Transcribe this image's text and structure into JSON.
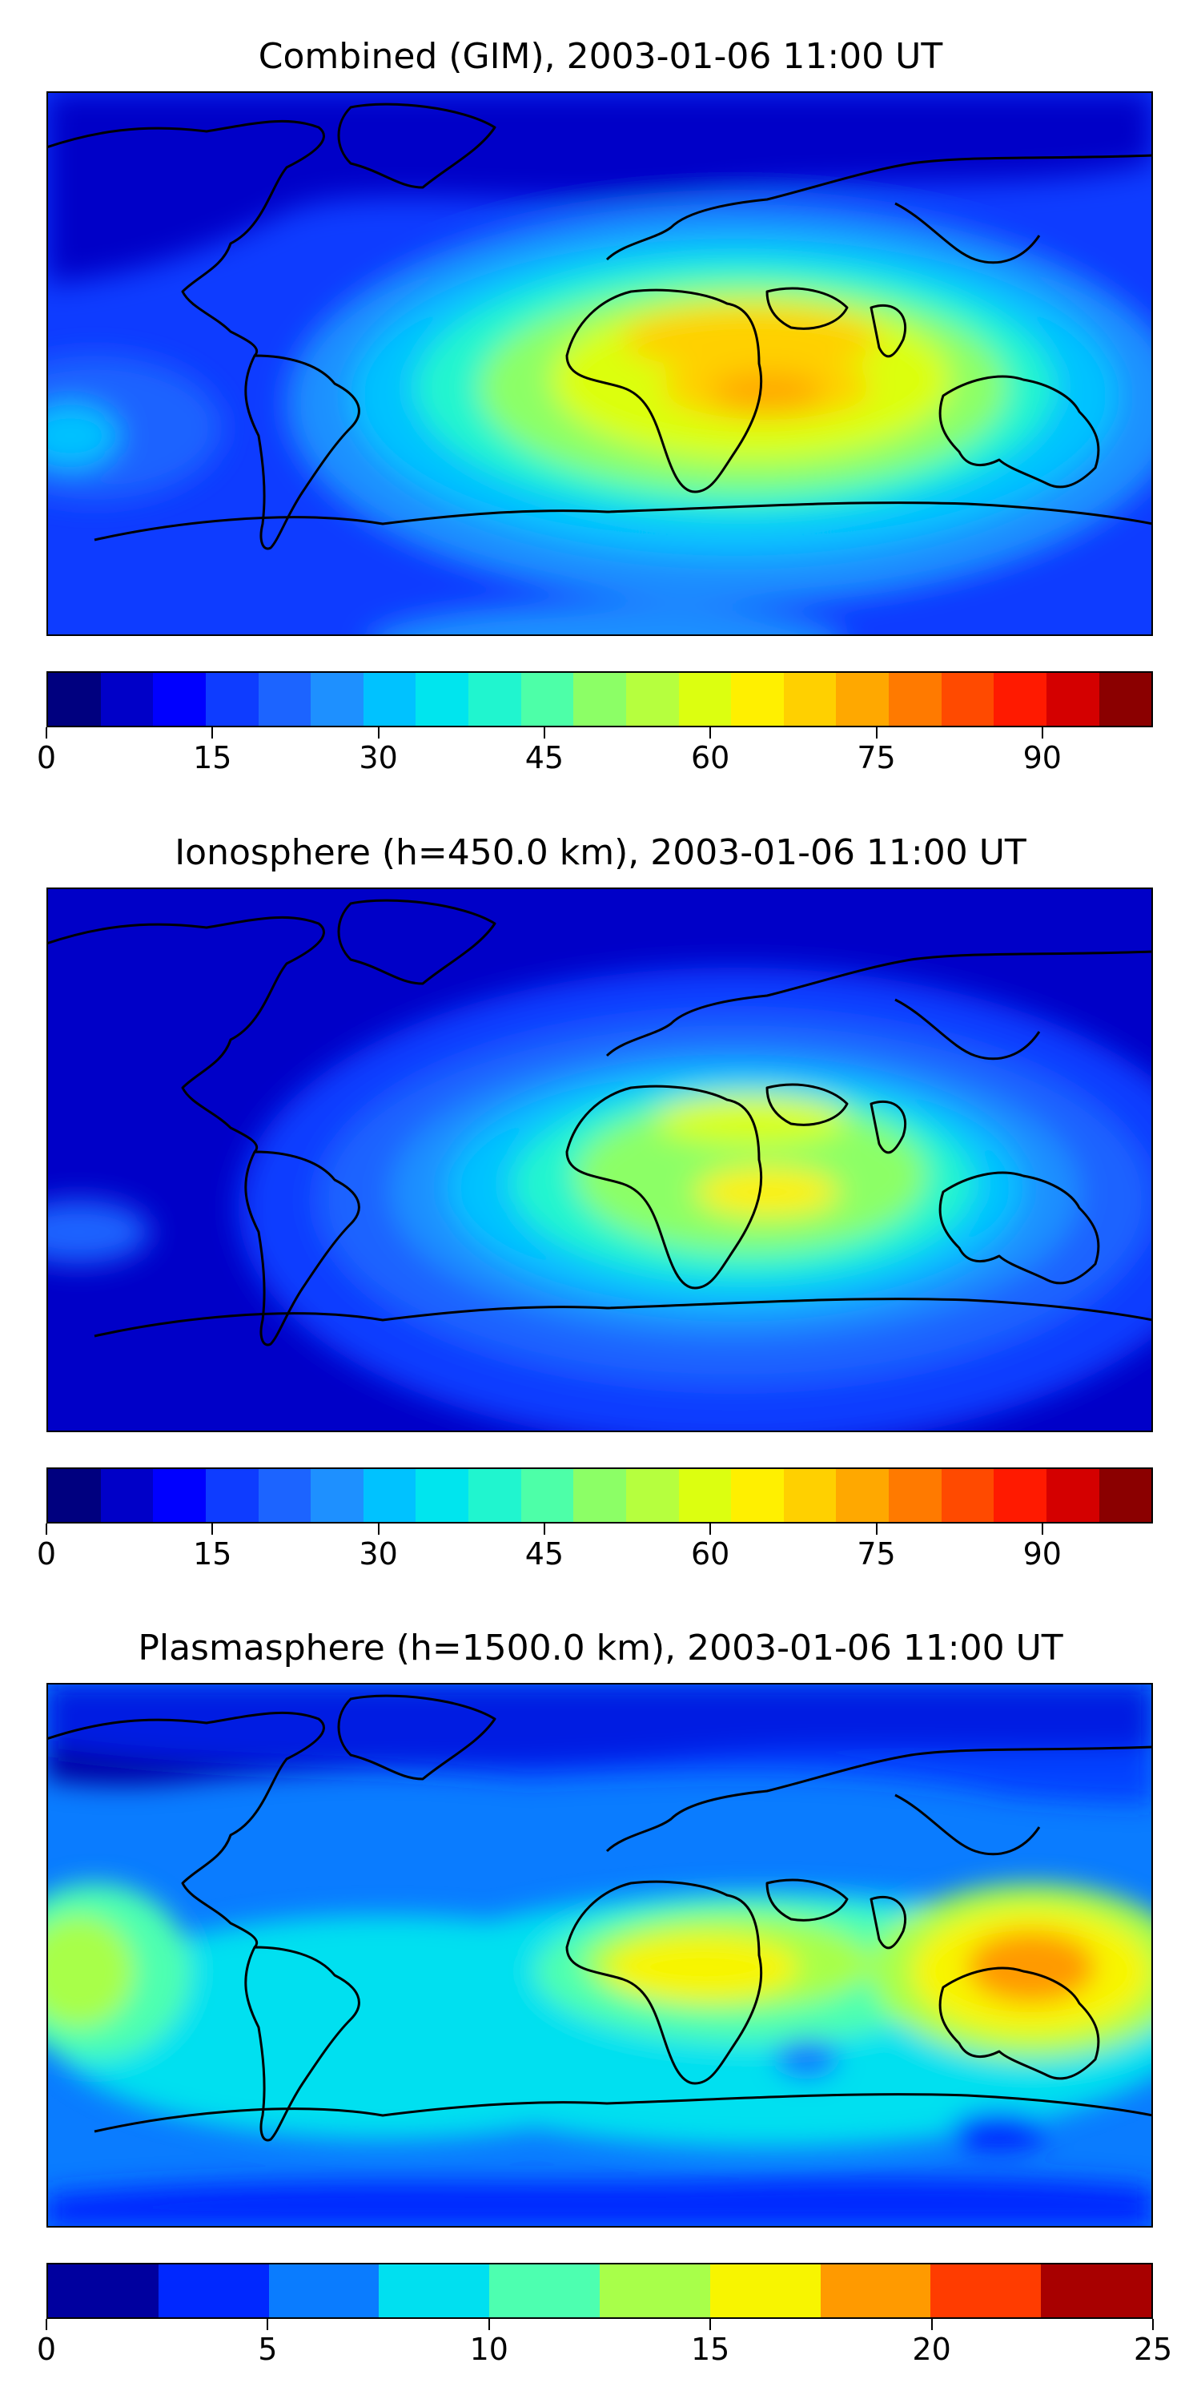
{
  "maps": [
    {
      "title": "Combined (GIM), 2003-01-06 11:00 UT",
      "colorbar": {
        "colors": [
          "#00007f",
          "#0000c8",
          "#0000ff",
          "#0e3cff",
          "#1c64ff",
          "#1e90ff",
          "#00c2ff",
          "#00e5ee",
          "#20f5cf",
          "#4dffa8",
          "#8cff66",
          "#b6ff3e",
          "#dcff10",
          "#fff000",
          "#ffd000",
          "#ffa800",
          "#ff7a00",
          "#ff4a00",
          "#ff1a00",
          "#d40000",
          "#8b0000"
        ],
        "ticks": [
          "0",
          "15",
          "30",
          "45",
          "60",
          "75",
          "90"
        ],
        "tick_values": [
          0,
          15,
          30,
          45,
          60,
          75,
          90
        ],
        "range": [
          0,
          100
        ]
      }
    },
    {
      "title": "Ionosphere  (h=450.0 km), 2003-01-06 11:00 UT",
      "colorbar": {
        "colors": [
          "#00007f",
          "#0000c8",
          "#0000ff",
          "#0e3cff",
          "#1c64ff",
          "#1e90ff",
          "#00c2ff",
          "#00e5ee",
          "#20f5cf",
          "#4dffa8",
          "#8cff66",
          "#b6ff3e",
          "#dcff10",
          "#fff000",
          "#ffd000",
          "#ffa800",
          "#ff7a00",
          "#ff4a00",
          "#ff1a00",
          "#d40000",
          "#8b0000"
        ],
        "ticks": [
          "0",
          "15",
          "30",
          "45",
          "60",
          "75",
          "90"
        ],
        "tick_values": [
          0,
          15,
          30,
          45,
          60,
          75,
          90
        ],
        "range": [
          0,
          100
        ]
      }
    },
    {
      "title": "Plasmasphere (h=1500.0 km), 2003-01-06 11:00 UT",
      "colorbar": {
        "colors": [
          "#00009f",
          "#0028ff",
          "#0a7cff",
          "#00e0f0",
          "#4dffb0",
          "#a8ff4a",
          "#f8f500",
          "#ff9a00",
          "#ff3c00",
          "#a80000"
        ],
        "ticks": [
          "0",
          "5",
          "10",
          "15",
          "20",
          "25"
        ],
        "tick_values": [
          0,
          5,
          10,
          15,
          20,
          25
        ],
        "range": [
          0,
          25
        ]
      }
    }
  ]
}
